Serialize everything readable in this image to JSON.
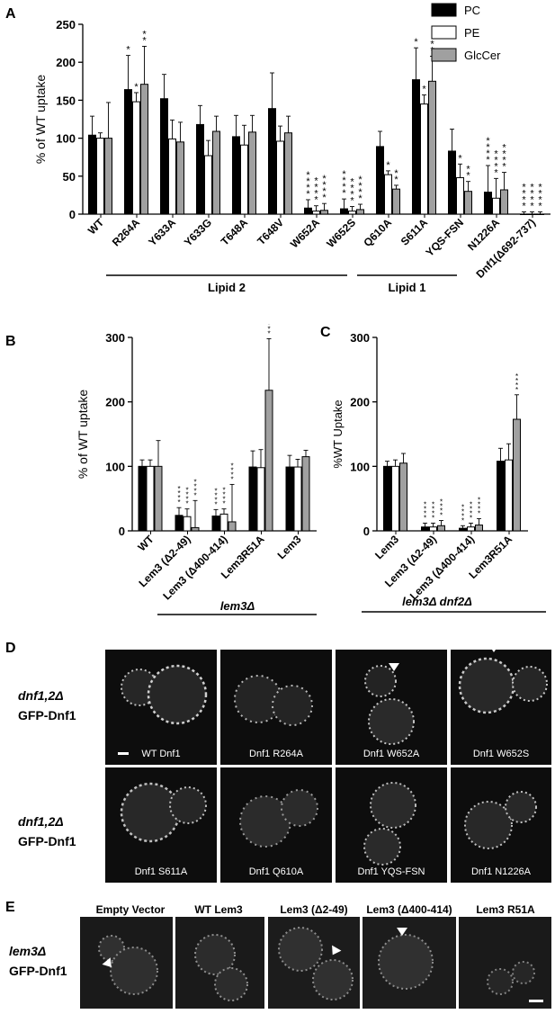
{
  "panels": {
    "A": "A",
    "B": "B",
    "C": "C",
    "D": "D",
    "E": "E"
  },
  "colors": {
    "PC": "#000000",
    "PE": "#ffffff",
    "GlcCer": "#a0a0a0"
  },
  "chart_data": [
    {
      "type": "bar",
      "panel": "A",
      "ylabel": "% of WT uptake",
      "ylim": [
        0,
        250
      ],
      "yticks": [
        0,
        50,
        100,
        150,
        200,
        250
      ],
      "legend": [
        "PC",
        "PE",
        "GlcCer"
      ],
      "legend_position": "top-right",
      "categories": [
        "WT",
        "R264A",
        "Y633A",
        "Y633G",
        "T648A",
        "T648V",
        "W652A",
        "W652S",
        "Q610A",
        "S611A",
        "YQS-FSN",
        "N1226A",
        "Dnf1(Δ692-737)"
      ],
      "series": [
        {
          "name": "PC",
          "values": [
            104,
            164,
            152,
            118,
            102,
            139,
            8,
            7,
            89,
            177,
            83,
            29,
            0
          ],
          "errors": [
            25,
            45,
            32,
            25,
            28,
            47,
            11,
            13,
            20,
            42,
            29,
            35,
            3
          ]
        },
        {
          "name": "PE",
          "values": [
            100,
            148,
            99,
            77,
            91,
            96,
            4,
            4,
            52,
            145,
            48,
            21,
            0
          ],
          "errors": [
            7,
            12,
            25,
            20,
            26,
            20,
            7,
            6,
            5,
            12,
            18,
            26,
            3
          ]
        },
        {
          "name": "GlcCer",
          "values": [
            100,
            171,
            95,
            109,
            108,
            107,
            5,
            6,
            33,
            175,
            30,
            32,
            0
          ],
          "errors": [
            47,
            50,
            26,
            20,
            22,
            22,
            9,
            7,
            5,
            33,
            13,
            23,
            3
          ]
        }
      ],
      "stars": [
        [
          "",
          "",
          ""
        ],
        [
          "*",
          "*",
          "**"
        ],
        [
          "",
          "",
          ""
        ],
        [
          "",
          "",
          ""
        ],
        [
          "",
          "",
          ""
        ],
        [
          "",
          "",
          ""
        ],
        [
          "****",
          "****",
          "****"
        ],
        [
          "****",
          "****",
          "****"
        ],
        [
          "",
          "*",
          "**"
        ],
        [
          "*",
          "*",
          "**"
        ],
        [
          "",
          "*",
          "**"
        ],
        [
          "****",
          "****",
          "****"
        ],
        [
          "****",
          "****",
          "****"
        ]
      ],
      "groups": [
        {
          "label": "Lipid 2",
          "from": 1,
          "to": 7
        },
        {
          "label": "Lipid 1",
          "from": 8,
          "to": 11
        }
      ]
    },
    {
      "type": "bar",
      "panel": "B",
      "ylabel": "% of WT uptake",
      "ylim": [
        0,
        300
      ],
      "yticks": [
        0,
        100,
        200,
        300
      ],
      "categories": [
        "WT",
        "Lem3 (Δ2-49)",
        "Lem3 (Δ400-414)",
        "Lem3R51A",
        "Lem3"
      ],
      "series": [
        {
          "name": "PC",
          "values": [
            100,
            24,
            23,
            99,
            99
          ],
          "errors": [
            10,
            12,
            10,
            25,
            18
          ]
        },
        {
          "name": "PE",
          "values": [
            100,
            22,
            26,
            98,
            99
          ],
          "errors": [
            10,
            12,
            8,
            28,
            12
          ]
        },
        {
          "name": "GlcCer",
          "values": [
            100,
            5,
            14,
            218,
            115
          ],
          "errors": [
            40,
            42,
            58,
            80,
            10
          ]
        }
      ],
      "stars": [
        [
          "",
          "",
          ""
        ],
        [
          "****",
          "****",
          "****"
        ],
        [
          "****",
          "****",
          "****"
        ],
        [
          "",
          "",
          "****"
        ],
        [
          "",
          "",
          ""
        ]
      ],
      "group_label": "lem3Δ"
    },
    {
      "type": "bar",
      "panel": "C",
      "ylabel": "%WT Uptake",
      "ylim": [
        0,
        300
      ],
      "yticks": [
        0,
        100,
        200,
        300
      ],
      "categories": [
        "Lem3",
        "Lem3 (Δ2-49)",
        "Lem3 (Δ400-414)",
        "Lem3R51A"
      ],
      "series": [
        {
          "name": "PC",
          "values": [
            100,
            6,
            4,
            108
          ],
          "errors": [
            8,
            6,
            4,
            20
          ]
        },
        {
          "name": "PE",
          "values": [
            100,
            6,
            6,
            110
          ],
          "errors": [
            10,
            6,
            6,
            25
          ]
        },
        {
          "name": "GlcCer",
          "values": [
            105,
            8,
            9,
            173
          ],
          "errors": [
            15,
            8,
            10,
            38
          ]
        }
      ],
      "stars": [
        [
          "",
          "",
          ""
        ],
        [
          "****",
          "****",
          "****"
        ],
        [
          "****",
          "****",
          "****"
        ],
        [
          "",
          "",
          "****"
        ]
      ],
      "group_label": "lem3Δ dnf2Δ"
    }
  ],
  "microscopy": {
    "row_label_genotype": "dnf1,2Δ",
    "row_label_fusion": "GFP-Dnf1",
    "row1": [
      "WT Dnf1",
      "Dnf1 R264A",
      "Dnf1 W652A",
      "Dnf1 W652S"
    ],
    "row2": [
      "Dnf1 S611A",
      "Dnf1 Q610A",
      "Dnf1 YQS-FSN",
      "Dnf1 N1226A"
    ],
    "e_row_label_genotype": "lem3Δ",
    "e_row_label_fusion": "GFP-Dnf1",
    "e_columns": [
      "Empty Vector",
      "WT Lem3",
      "Lem3 (Δ2-49)",
      "Lem3 (Δ400-414)",
      "Lem3 R51A"
    ]
  }
}
